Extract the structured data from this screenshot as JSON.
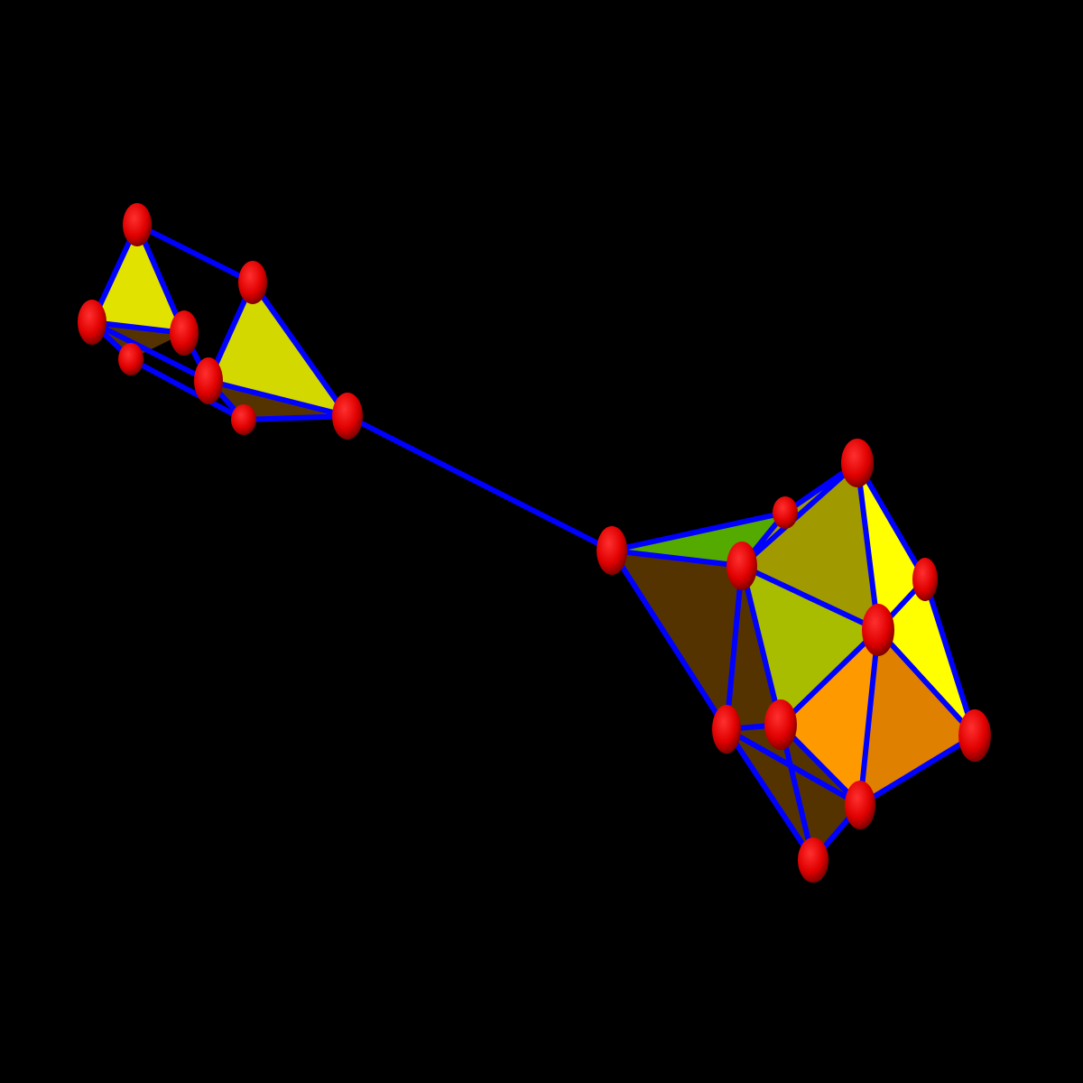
{
  "scene": {
    "background_color": "#000000",
    "node_color": "#ff0000",
    "edge_color": "#0000ff",
    "face_colors": {
      "yellow": "#e2e200",
      "lime_yellow": "#d2d800",
      "bright_yellow": "#ffff00",
      "green": "#55aa00",
      "olive": "#a09a00",
      "yellow_green": "#a8bc00",
      "orange": "#ff9900",
      "dark_orange": "#e08000",
      "brown": "#553300"
    }
  }
}
